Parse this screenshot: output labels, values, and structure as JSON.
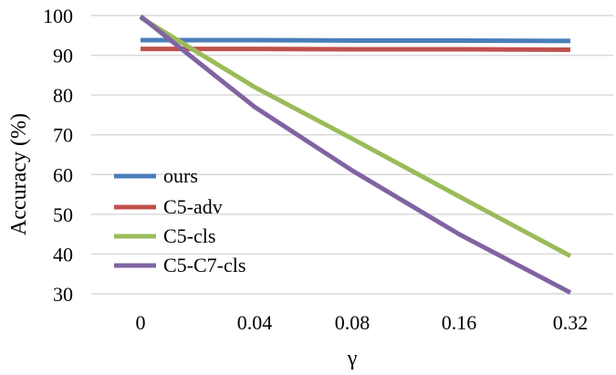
{
  "chart_data": {
    "type": "line",
    "title": "",
    "xlabel": "γ",
    "ylabel": "Accuracy (%)",
    "categories": [
      "0",
      "0.04",
      "0.08",
      "0.16",
      "0.32"
    ],
    "ylim": [
      30,
      100
    ],
    "yticks": [
      30,
      40,
      50,
      60,
      70,
      80,
      90,
      100
    ],
    "grid": "horizontal",
    "legend_position": "left-center",
    "series": [
      {
        "name": "ours",
        "color": "#4a7ebb",
        "values": [
          93.8,
          93.8,
          93.7,
          93.7,
          93.6
        ]
      },
      {
        "name": "C5-adv",
        "color": "#c0504d",
        "values": [
          91.6,
          91.6,
          91.5,
          91.5,
          91.4
        ]
      },
      {
        "name": "C5-cls",
        "color": "#9bbb59",
        "values": [
          99.5,
          82,
          69,
          54.5,
          39.5
        ]
      },
      {
        "name": "C5-C7-cls",
        "color": "#8064a2",
        "values": [
          99.8,
          77,
          61,
          45,
          30.3
        ]
      }
    ]
  }
}
